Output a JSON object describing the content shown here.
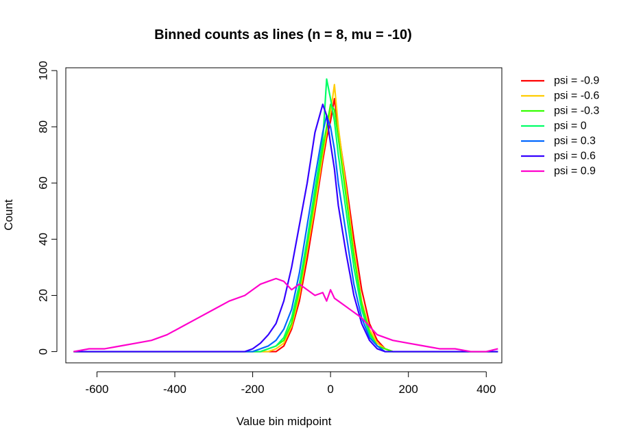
{
  "chart_data": {
    "type": "line",
    "title": "Binned counts as lines (n = 8, mu = -10)",
    "xlabel": "Value bin midpoint",
    "ylabel": "Count",
    "xlim": [
      -680,
      440
    ],
    "ylim": [
      -4,
      101
    ],
    "x_ticks": [
      -600,
      -400,
      -200,
      0,
      200,
      400
    ],
    "x_tick_labels": [
      "-600",
      "-400",
      "-200",
      "0",
      "200",
      "400"
    ],
    "y_ticks": [
      0,
      20,
      40,
      60,
      80,
      100
    ],
    "y_tick_labels": [
      "0",
      "20",
      "40",
      "60",
      "80",
      "100"
    ],
    "legend_position": "right",
    "x": [
      -660,
      -620,
      -580,
      -540,
      -500,
      -460,
      -420,
      -380,
      -340,
      -300,
      -260,
      -220,
      -200,
      -180,
      -160,
      -140,
      -120,
      -100,
      -80,
      -60,
      -40,
      -20,
      -10,
      0,
      10,
      20,
      40,
      60,
      80,
      100,
      120,
      140,
      160,
      200,
      240,
      280,
      320,
      360,
      400,
      430
    ],
    "series": [
      {
        "name": "psi = -0.9",
        "color": "#FF0000",
        "values": [
          0,
          0,
          0,
          0,
          0,
          0,
          0,
          0,
          0,
          0,
          0,
          0,
          0,
          0,
          0,
          0,
          2,
          8,
          18,
          33,
          50,
          68,
          76,
          82,
          90,
          79,
          60,
          40,
          22,
          10,
          4,
          1,
          0,
          0,
          0,
          0,
          0,
          0,
          0,
          0
        ]
      },
      {
        "name": "psi = -0.6",
        "color": "#FFCC00",
        "values": [
          0,
          0,
          0,
          0,
          0,
          0,
          0,
          0,
          0,
          0,
          0,
          0,
          0,
          0,
          0,
          1,
          3,
          9,
          20,
          36,
          52,
          70,
          78,
          85,
          95,
          80,
          58,
          36,
          18,
          8,
          3,
          1,
          0,
          0,
          0,
          0,
          0,
          0,
          0,
          0
        ]
      },
      {
        "name": "psi = -0.3",
        "color": "#33FF00",
        "values": [
          0,
          0,
          0,
          0,
          0,
          0,
          0,
          0,
          0,
          0,
          0,
          0,
          0,
          0,
          1,
          2,
          4,
          10,
          22,
          38,
          55,
          72,
          80,
          88,
          86,
          76,
          55,
          34,
          17,
          7,
          2,
          1,
          0,
          0,
          0,
          0,
          0,
          0,
          0,
          0
        ]
      },
      {
        "name": "psi = 0",
        "color": "#00FF66",
        "values": [
          0,
          0,
          0,
          0,
          0,
          0,
          0,
          0,
          0,
          0,
          0,
          0,
          0,
          0,
          1,
          2,
          5,
          12,
          24,
          40,
          58,
          75,
          97,
          90,
          82,
          70,
          50,
          30,
          15,
          6,
          2,
          0,
          0,
          0,
          0,
          0,
          0,
          0,
          0,
          0
        ]
      },
      {
        "name": "psi = 0.3",
        "color": "#0066FF",
        "values": [
          0,
          0,
          0,
          0,
          0,
          0,
          0,
          0,
          0,
          0,
          0,
          0,
          0,
          1,
          2,
          4,
          8,
          15,
          28,
          45,
          62,
          78,
          84,
          80,
          72,
          60,
          42,
          24,
          12,
          5,
          2,
          0,
          0,
          0,
          0,
          0,
          0,
          0,
          0,
          0
        ]
      },
      {
        "name": "psi = 0.6",
        "color": "#3300FF",
        "values": [
          0,
          0,
          0,
          0,
          0,
          0,
          0,
          0,
          0,
          0,
          0,
          0,
          1,
          3,
          6,
          10,
          18,
          30,
          45,
          60,
          78,
          88,
          84,
          74,
          65,
          52,
          35,
          20,
          10,
          4,
          1,
          0,
          0,
          0,
          0,
          0,
          0,
          0,
          0,
          0
        ]
      },
      {
        "name": "psi = 0.9",
        "color": "#FF00CC",
        "values": [
          0,
          1,
          1,
          2,
          3,
          4,
          6,
          9,
          12,
          15,
          18,
          20,
          22,
          24,
          25,
          26,
          25,
          22,
          24,
          22,
          20,
          21,
          18,
          22,
          19,
          18,
          16,
          14,
          12,
          9,
          6,
          5,
          4,
          3,
          2,
          1,
          1,
          0,
          0,
          1
        ]
      }
    ]
  }
}
